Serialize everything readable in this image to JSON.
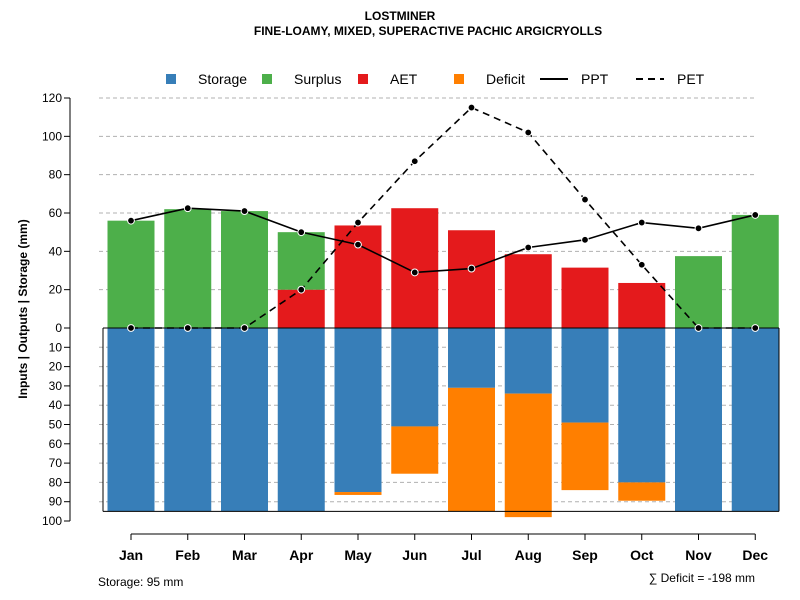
{
  "chart_data": {
    "type": "bar",
    "title": "LOSTMINER",
    "subtitle": "FINE-LOAMY, MIXED, SUPERACTIVE PACHIC ARGICRYOLLS",
    "ylabel": "Inputs | Outputs | Storage    (mm)",
    "categories": [
      "Jan",
      "Feb",
      "Mar",
      "Apr",
      "May",
      "Jun",
      "Jul",
      "Aug",
      "Sep",
      "Oct",
      "Nov",
      "Dec"
    ],
    "ylim_top": [
      0,
      120
    ],
    "ylim_bottom": [
      0,
      100
    ],
    "yticks_top": [
      "0",
      "20",
      "40",
      "60",
      "80",
      "100",
      "120"
    ],
    "yticks_bottom": [
      "10",
      "20",
      "30",
      "40",
      "50",
      "60",
      "70",
      "80",
      "90",
      "100"
    ],
    "legend": [
      "Storage",
      "Surplus",
      "AET",
      "Deficit",
      "PPT",
      "PET"
    ],
    "colors": {
      "storage": "#377eb8",
      "surplus": "#4daf4a",
      "aet": "#e41a1c",
      "deficit": "#ff7f00",
      "line": "#000000",
      "grid": "#b0b0b0"
    },
    "storage_capacity": 95,
    "series": {
      "aet": [
        0,
        0,
        0,
        20,
        53.5,
        62.5,
        51,
        38.5,
        31.5,
        23.5,
        0,
        0
      ],
      "surplus": [
        56,
        62,
        61,
        30,
        0,
        0,
        0,
        0,
        0,
        0,
        37.5,
        59
      ],
      "storage": [
        95,
        95,
        95,
        95,
        85,
        51,
        31,
        34,
        49,
        80,
        95,
        95
      ],
      "deficit": [
        0,
        0,
        0,
        0,
        1.5,
        24.5,
        64,
        64,
        35,
        9.5,
        0,
        0
      ],
      "ppt": [
        56,
        62.5,
        61,
        50,
        43.5,
        29,
        31,
        42,
        46,
        55,
        52,
        59
      ],
      "pet": [
        0,
        0,
        0,
        20,
        55,
        87,
        115,
        102,
        67,
        33,
        0,
        0
      ]
    },
    "footer_left": "Storage: 95 mm",
    "footer_right": "∑ Deficit = -198 mm"
  }
}
